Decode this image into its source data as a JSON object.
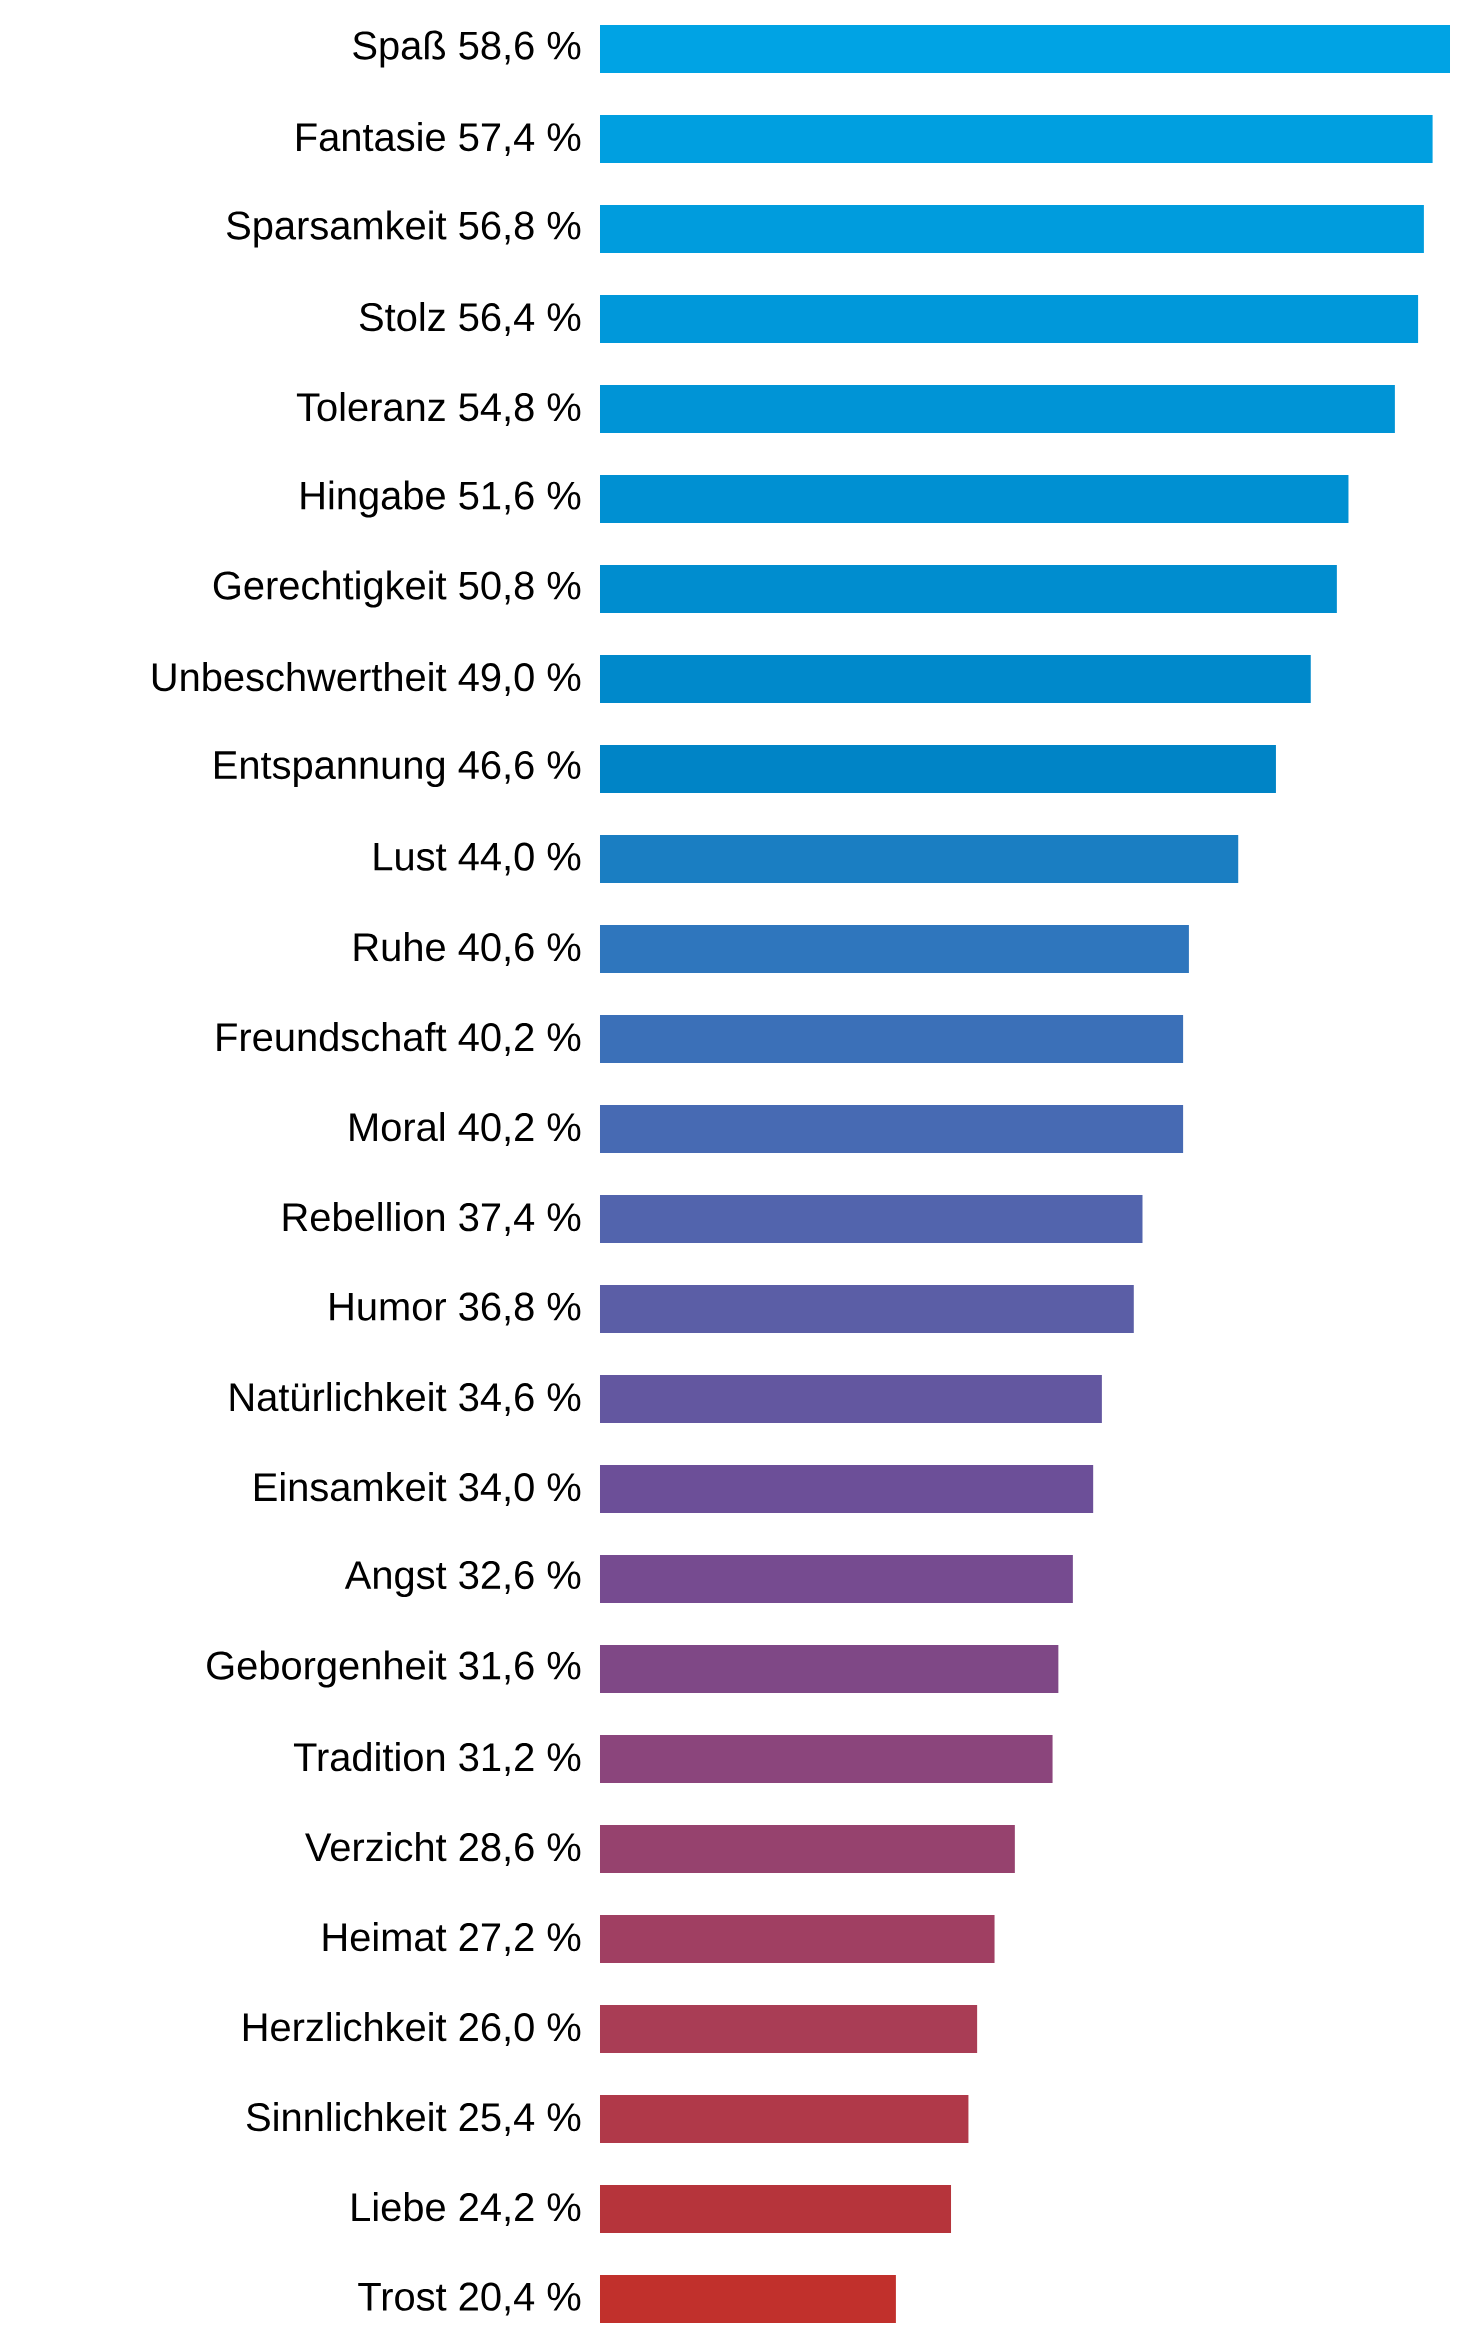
{
  "chart_data": {
    "type": "bar",
    "orientation": "horizontal",
    "categories": [
      "Spaß",
      "Fantasie",
      "Sparsamkeit",
      "Stolz",
      "Toleranz",
      "Hingabe",
      "Gerechtigkeit",
      "Unbeschwertheit",
      "Entspannung",
      "Lust",
      "Ruhe",
      "Freundschaft",
      "Moral",
      "Rebellion",
      "Humor",
      "Natürlichkeit",
      "Einsamkeit",
      "Angst",
      "Geborgenheit",
      "Tradition",
      "Verzicht",
      "Heimat",
      "Herzlichkeit",
      "Sinnlichkeit",
      "Liebe",
      "Trost"
    ],
    "values": [
      58.6,
      57.4,
      56.8,
      56.4,
      54.8,
      51.6,
      50.8,
      49.0,
      46.6,
      44.0,
      40.6,
      40.2,
      40.2,
      37.4,
      36.8,
      34.6,
      34.0,
      32.6,
      31.6,
      31.2,
      28.6,
      27.2,
      26.0,
      25.4,
      24.2,
      20.4
    ],
    "value_labels": [
      "58,6 %",
      "57,4 %",
      "56,8 %",
      "56,4 %",
      "54,8 %",
      "51,6 %",
      "50,8 %",
      "49,0 %",
      "46,6 %",
      "44,0 %",
      "40,6 %",
      "40,2 %",
      "40,2 %",
      "37,4 %",
      "36,8 %",
      "34,6 %",
      "34,0 %",
      "32,6 %",
      "31,6 %",
      "31,2 %",
      "28,6 %",
      "27,2 %",
      "26,0 %",
      "25,4 %",
      "24,2 %",
      "20,4 %"
    ],
    "colors": [
      "#00a3e4",
      "#009fe0",
      "#009cdd",
      "#0098da",
      "#0094d6",
      "#0090d2",
      "#008dcf",
      "#0089cb",
      "#0084c6",
      "#1a7ec2",
      "#2f76bd",
      "#3b70b8",
      "#476ab3",
      "#5264ad",
      "#5b5ea6",
      "#6357a0",
      "#6c4f98",
      "#764b90",
      "#7f4886",
      "#8b457c",
      "#96426e",
      "#a03f62",
      "#a93d55",
      "#b03949",
      "#b6343b",
      "#c1302c"
    ]
  }
}
